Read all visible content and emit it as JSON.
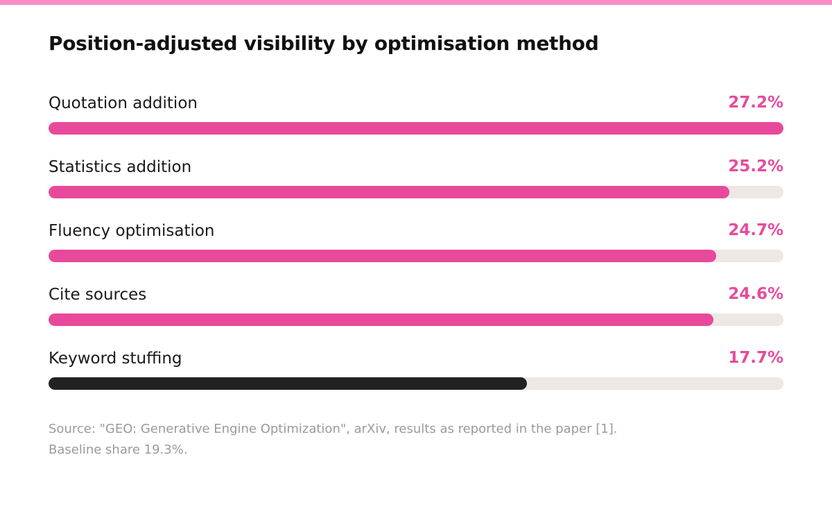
{
  "colors": {
    "accent": "#e84a9b",
    "dark": "#222222",
    "track": "#efe7e2",
    "top_strip": "#f98cc4"
  },
  "chart_data": {
    "type": "bar",
    "orientation": "horizontal",
    "title": "Position-adjusted visibility by optimisation method",
    "categories": [
      "Quotation addition",
      "Statistics addition",
      "Fluency optimisation",
      "Cite sources",
      "Keyword stuffing"
    ],
    "values": [
      27.2,
      25.2,
      24.7,
      24.6,
      17.7
    ],
    "value_labels": [
      "27.2%",
      "25.2%",
      "24.7%",
      "24.6%",
      "17.7%"
    ],
    "bar_colors": [
      "#e84a9b",
      "#e84a9b",
      "#e84a9b",
      "#e84a9b",
      "#222222"
    ],
    "value_label_color": "#e84a9b",
    "xlim": [
      0,
      27.2
    ],
    "grid": false,
    "legend": "none"
  },
  "source_note": "Source: \"GEO: Generative Engine Optimization\", arXiv, results as reported in the paper [1]. Baseline share 19.3%."
}
